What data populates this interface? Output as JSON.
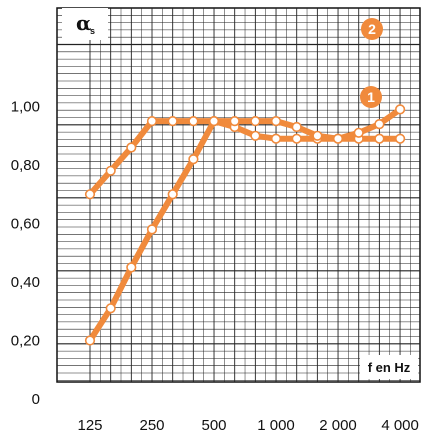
{
  "chart_data": {
    "type": "line",
    "ylabel": "α",
    "ylabel_subscript": "s",
    "xlabel": "f en Hz",
    "x": [
      "125",
      "160",
      "200",
      "250",
      "315",
      "400",
      "500",
      "630",
      "800",
      "1000",
      "1250",
      "1600",
      "2000",
      "2500",
      "3150",
      "4000"
    ],
    "x_tick_labels": [
      "125",
      "250",
      "500",
      "1 000",
      "2 000",
      "4 000"
    ],
    "y_tick_labels": [
      "0",
      "0,20",
      "0,40",
      "0,60",
      "0,80",
      "1,00"
    ],
    "ylim": [
      0,
      1.06
    ],
    "grid": true,
    "colors": {
      "series": "#f08a3c",
      "marker_fill": "#ffffff",
      "grid": "#222222"
    },
    "series": [
      {
        "name": "1",
        "values": [
          0.7,
          0.78,
          0.86,
          0.95,
          0.95,
          0.95,
          0.95,
          0.93,
          0.9,
          0.89,
          0.89,
          0.89,
          0.89,
          0.89,
          0.89,
          0.89
        ]
      },
      {
        "name": "2",
        "values": [
          0.2,
          0.31,
          0.45,
          0.58,
          0.7,
          0.82,
          0.95,
          0.95,
          0.95,
          0.95,
          0.93,
          0.9,
          0.89,
          0.91,
          0.94,
          0.99
        ]
      }
    ]
  }
}
